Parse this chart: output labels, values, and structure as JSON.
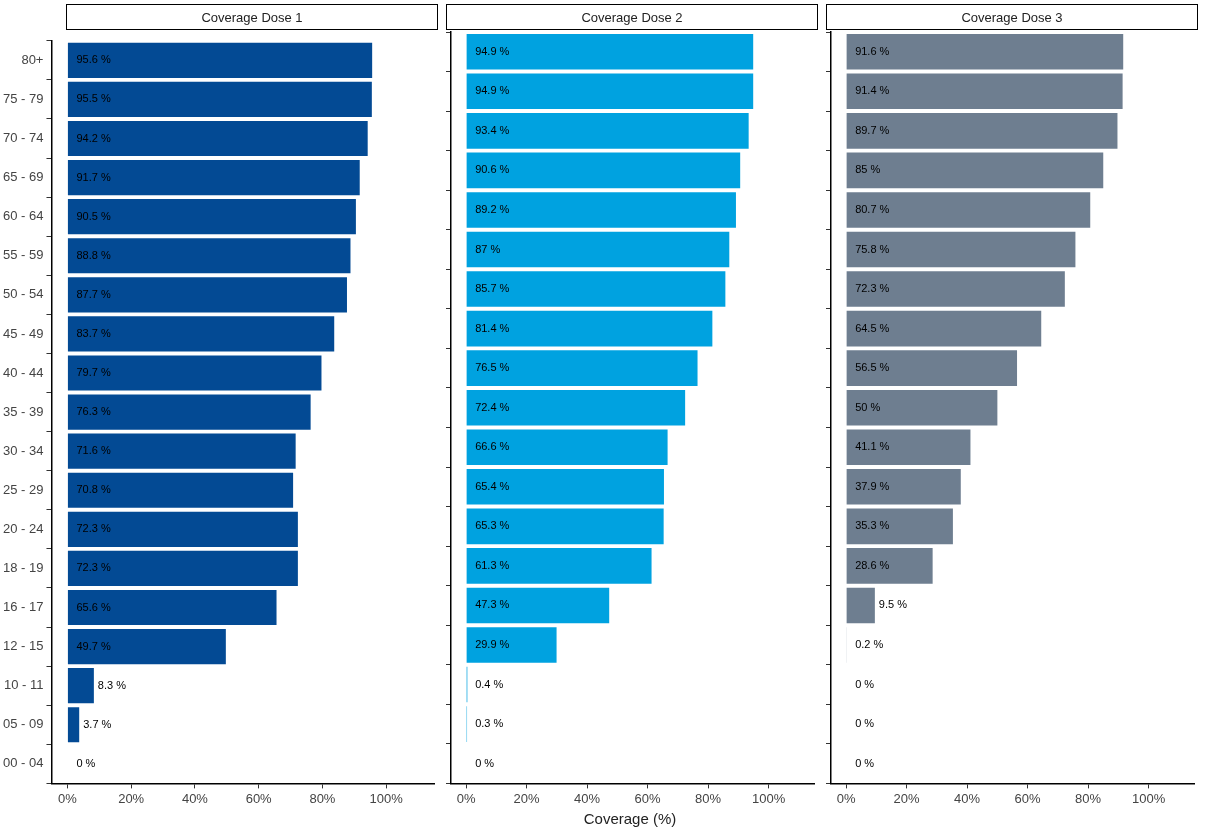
{
  "chart_data": [
    {
      "type": "bar",
      "orientation": "horizontal",
      "title": "Coverage Dose 1",
      "categories": [
        "80+",
        "75 - 79",
        "70 - 74",
        "65 - 69",
        "60 - 64",
        "55 - 59",
        "50 - 54",
        "45 - 49",
        "40 - 44",
        "35 - 39",
        "30 - 34",
        "25 - 29",
        "20 - 24",
        "18 - 19",
        "16 - 17",
        "12 - 15",
        "10 - 11",
        "05 - 09",
        "00 - 04"
      ],
      "color": "#034a94",
      "values": [
        95.6,
        95.5,
        94.2,
        91.7,
        90.5,
        88.8,
        87.7,
        83.7,
        79.7,
        76.3,
        71.6,
        70.8,
        72.3,
        72.3,
        65.6,
        49.7,
        8.3,
        3.7,
        0
      ],
      "value_labels": [
        "95.6 %",
        "95.5 %",
        "94.2 %",
        "91.7 %",
        "90.5 %",
        "88.8 %",
        "87.7 %",
        "83.7 %",
        "79.7 %",
        "76.3 %",
        "71.6 %",
        "70.8 %",
        "72.3 %",
        "72.3 %",
        "65.6 %",
        "49.7 %",
        "8.3 %",
        "3.7 %",
        "0 %"
      ],
      "xlim": [
        -5,
        115
      ],
      "xticks": [
        {
          "value": 0,
          "label": "0%"
        },
        {
          "value": 20,
          "label": "20%"
        },
        {
          "value": 40,
          "label": "40%"
        },
        {
          "value": 60,
          "label": "60%"
        },
        {
          "value": 80,
          "label": "80%"
        },
        {
          "value": 100,
          "label": "100%"
        }
      ],
      "grid": false
    },
    {
      "type": "bar",
      "orientation": "horizontal",
      "title": "Coverage Dose 2",
      "xlabel": "Coverage (%)",
      "categories": [
        null,
        null,
        null,
        null,
        null,
        null,
        null,
        null,
        null,
        null,
        null,
        null,
        null,
        null,
        null,
        null,
        null,
        null,
        null
      ],
      "color": "#00a2e0",
      "values": [
        94.9,
        94.9,
        93.4,
        90.6,
        89.2,
        87,
        85.7,
        81.4,
        76.5,
        72.4,
        66.6,
        65.4,
        65.3,
        61.3,
        47.3,
        29.9,
        0.4,
        0.3,
        0
      ],
      "value_labels": [
        "94.9 %",
        "94.9 %",
        "93.4 %",
        "90.6 %",
        "89.2 %",
        "87 %",
        "85.7 %",
        "81.4 %",
        "76.5 %",
        "72.4 %",
        "66.6 %",
        "65.4 %",
        "65.3 %",
        "61.3 %",
        "47.3 %",
        "29.9 %",
        "0.4 %",
        "0.3 %",
        "0 %"
      ],
      "xlim": [
        -5,
        115
      ],
      "xticks": [
        {
          "value": 0,
          "label": "0%"
        },
        {
          "value": 20,
          "label": "20%"
        },
        {
          "value": 40,
          "label": "40%"
        },
        {
          "value": 60,
          "label": "60%"
        },
        {
          "value": 80,
          "label": "80%"
        },
        {
          "value": 100,
          "label": "100%"
        }
      ],
      "grid": false,
      "tick_labels": "x"
    },
    {
      "type": "bar",
      "orientation": "horizontal",
      "title": "Coverage Dose 3",
      "categories": [
        null,
        null,
        null,
        null,
        null,
        null,
        null,
        null,
        null,
        null,
        null,
        null,
        null,
        null,
        null,
        null,
        null,
        null,
        null
      ],
      "color": "#6e7e90",
      "values": [
        91.6,
        91.4,
        89.7,
        85,
        80.7,
        75.8,
        72.3,
        64.5,
        56.5,
        50,
        41.1,
        37.9,
        35.3,
        28.6,
        9.5,
        0.2,
        0,
        0,
        0
      ],
      "value_labels": [
        "91.6 %",
        "91.4 %",
        "89.7 %",
        "85 %",
        "80.7 %",
        "75.8 %",
        "72.3 %",
        "64.5 %",
        "56.5 %",
        "50 %",
        "41.1 %",
        "37.9 %",
        "35.3 %",
        "28.6 %",
        "9.5 %",
        "0.2 %",
        "0 %",
        "0 %",
        "0 %"
      ],
      "xlim": [
        -5,
        115
      ],
      "xticks": [
        {
          "value": 0,
          "label": "0%"
        },
        {
          "value": 20,
          "label": "20%"
        },
        {
          "value": 40,
          "label": "40%"
        },
        {
          "value": 60,
          "label": "60%"
        },
        {
          "value": 80,
          "label": "80%"
        },
        {
          "value": 100,
          "label": "100%"
        }
      ],
      "grid": false,
      "tick_labels": "x"
    }
  ]
}
